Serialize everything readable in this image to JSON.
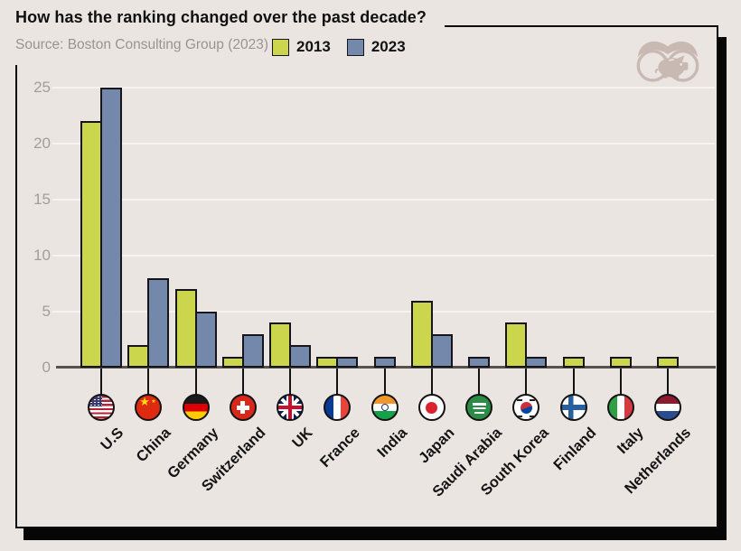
{
  "header": {
    "title": "How has the ranking changed over the past decade?",
    "source": "Source: Boston Consulting Group (2023)"
  },
  "brand": {
    "logo_icon": "binoculars-piggy-bank-logo"
  },
  "colors": {
    "background": "#ebe5e2",
    "panel_border": "#0c0c0c",
    "series_2013": "#ccd64d",
    "series_2023": "#7388ab",
    "axis_line": "#57524e",
    "gridline": "#f7f3f0",
    "tick_label": "#a39d99",
    "title_text": "#101010",
    "source_text": "#9a9490"
  },
  "chart_data": {
    "type": "bar",
    "title": "How has the ranking changed over the past decade?",
    "source": "Source: Boston Consulting Group (2023)",
    "categories": [
      "U.S",
      "China",
      "Germany",
      "Switzerland",
      "UK",
      "France",
      "India",
      "Japan",
      "Saudi Arabia",
      "South Korea",
      "Finland",
      "Italy",
      "Netherlands"
    ],
    "flags": [
      "us",
      "cn",
      "de",
      "ch",
      "gb",
      "fr",
      "in",
      "jp",
      "sa",
      "kr",
      "fi",
      "it",
      "nl"
    ],
    "series": [
      {
        "name": "2013",
        "color": "#ccd64d",
        "values": [
          22,
          2,
          7,
          1,
          4,
          1,
          0,
          6,
          0,
          4,
          1,
          1,
          1
        ]
      },
      {
        "name": "2023",
        "color": "#7388ab",
        "values": [
          25,
          8,
          5,
          3,
          2,
          1,
          1,
          3,
          1,
          1,
          0,
          0,
          0
        ]
      }
    ],
    "xlabel": "",
    "ylabel": "",
    "yticks": [
      0,
      5,
      10,
      15,
      20,
      25
    ],
    "ylim": [
      0,
      25
    ],
    "grid": true,
    "legend_position": "top"
  }
}
